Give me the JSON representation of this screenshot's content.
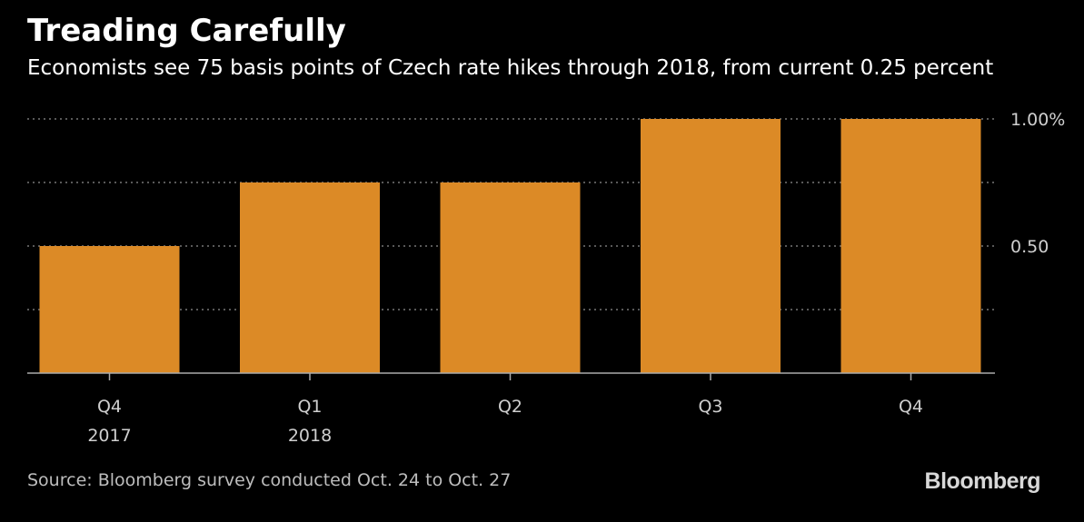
{
  "header": {
    "title": "Treading Carefully",
    "subtitle": "Economists see 75 basis points of Czech rate hikes through 2018, from current 0.25 percent"
  },
  "footer": {
    "source": "Source: Bloomberg survey conducted Oct. 24 to Oct. 27",
    "brand": "Bloomberg"
  },
  "chart_data": {
    "type": "bar",
    "categories": [
      {
        "quarter": "Q4",
        "year": "2017"
      },
      {
        "quarter": "Q1",
        "year": "2018"
      },
      {
        "quarter": "Q2",
        "year": ""
      },
      {
        "quarter": "Q3",
        "year": ""
      },
      {
        "quarter": "Q4",
        "year": ""
      }
    ],
    "values": [
      0.5,
      0.75,
      0.75,
      1.0,
      1.0
    ],
    "ylim": [
      0,
      1.0
    ],
    "y_ticks": [
      {
        "value": 1.0,
        "label": "1.00%"
      },
      {
        "value": 0.75,
        "label": ""
      },
      {
        "value": 0.5,
        "label": "0.50"
      },
      {
        "value": 0.25,
        "label": ""
      }
    ],
    "grid": true,
    "y_axis_position": "right",
    "colors": {
      "bar": "#dc8a26",
      "grid": "#777777",
      "axis": "#aaaaaa",
      "tick_text": "#cfcfcf"
    }
  }
}
